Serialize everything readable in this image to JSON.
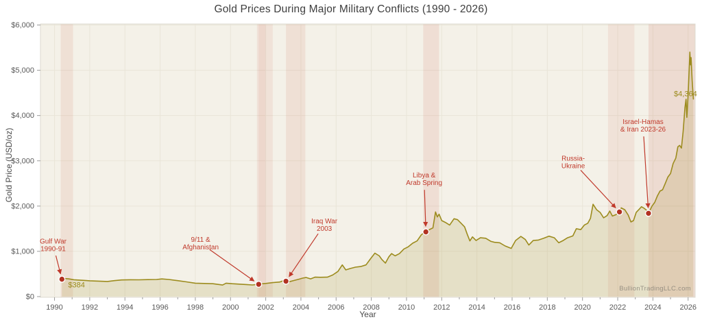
{
  "title": "Gold Prices During Major Military Conflicts (1990 - 2026)",
  "chart_data": {
    "type": "area",
    "title": "Gold Prices During Major Military Conflicts (1990 - 2026)",
    "xlabel": "Year",
    "ylabel": "Gold Price (USD/oz)",
    "watermark": "BullionTradingLLC.com",
    "x_domain": [
      1989.2,
      2026.4
    ],
    "y_domain": [
      0,
      6000
    ],
    "x_ticks": [
      1990,
      1992,
      1994,
      1996,
      1998,
      2000,
      2002,
      2004,
      2006,
      2008,
      2010,
      2012,
      2014,
      2016,
      2018,
      2020,
      2022,
      2024,
      2026
    ],
    "x_minor_ticks": [
      1991,
      1993,
      1995,
      1997,
      1999,
      2001,
      2003,
      2005,
      2007,
      2009,
      2011,
      2013,
      2015,
      2017,
      2019,
      2021,
      2023,
      2025
    ],
    "y_ticks": [
      {
        "value": 0,
        "label": "$0"
      },
      {
        "value": 1000,
        "label": "$1,000"
      },
      {
        "value": 2000,
        "label": "$2,000"
      },
      {
        "value": 3000,
        "label": "$3,000"
      },
      {
        "value": 4000,
        "label": "$4,000"
      },
      {
        "value": 5000,
        "label": "$5,000"
      },
      {
        "value": 6000,
        "label": "$6,000"
      }
    ],
    "grid": true,
    "legend": "none",
    "series": [
      {
        "name": "gold-price",
        "points": [
          [
            1990.42,
            384
          ],
          [
            1990.6,
            398
          ],
          [
            1990.8,
            392
          ],
          [
            1991.1,
            372
          ],
          [
            1991.5,
            362
          ],
          [
            1992.0,
            350
          ],
          [
            1992.5,
            342
          ],
          [
            1993.0,
            334
          ],
          [
            1993.4,
            352
          ],
          [
            1993.8,
            368
          ],
          [
            1994.3,
            372
          ],
          [
            1994.8,
            370
          ],
          [
            1995.3,
            376
          ],
          [
            1995.8,
            378
          ],
          [
            1996.1,
            390
          ],
          [
            1996.5,
            378
          ],
          [
            1997.0,
            352
          ],
          [
            1997.5,
            326
          ],
          [
            1998.0,
            296
          ],
          [
            1998.5,
            290
          ],
          [
            1999.0,
            284
          ],
          [
            1999.55,
            256
          ],
          [
            1999.75,
            296
          ],
          [
            2000.1,
            284
          ],
          [
            2000.5,
            276
          ],
          [
            2000.9,
            266
          ],
          [
            2001.25,
            258
          ],
          [
            2001.45,
            266
          ],
          [
            2001.6,
            272
          ],
          [
            2001.75,
            282
          ],
          [
            2002.0,
            290
          ],
          [
            2002.4,
            308
          ],
          [
            2002.8,
            322
          ],
          [
            2003.0,
            352
          ],
          [
            2003.15,
            340
          ],
          [
            2003.35,
            330
          ],
          [
            2003.6,
            356
          ],
          [
            2003.9,
            386
          ],
          [
            2004.1,
            408
          ],
          [
            2004.3,
            422
          ],
          [
            2004.55,
            392
          ],
          [
            2004.8,
            430
          ],
          [
            2005.1,
            426
          ],
          [
            2005.5,
            430
          ],
          [
            2005.8,
            476
          ],
          [
            2006.1,
            556
          ],
          [
            2006.35,
            700
          ],
          [
            2006.55,
            590
          ],
          [
            2006.8,
            620
          ],
          [
            2007.1,
            650
          ],
          [
            2007.4,
            664
          ],
          [
            2007.7,
            700
          ],
          [
            2007.95,
            834
          ],
          [
            2008.2,
            960
          ],
          [
            2008.45,
            900
          ],
          [
            2008.6,
            820
          ],
          [
            2008.8,
            740
          ],
          [
            2009.0,
            880
          ],
          [
            2009.15,
            950
          ],
          [
            2009.35,
            900
          ],
          [
            2009.6,
            950
          ],
          [
            2009.85,
            1050
          ],
          [
            2010.1,
            1100
          ],
          [
            2010.35,
            1180
          ],
          [
            2010.6,
            1230
          ],
          [
            2010.85,
            1370
          ],
          [
            2011.1,
            1430
          ],
          [
            2011.3,
            1480
          ],
          [
            2011.5,
            1520
          ],
          [
            2011.65,
            1870
          ],
          [
            2011.75,
            1760
          ],
          [
            2011.85,
            1820
          ],
          [
            2012.0,
            1680
          ],
          [
            2012.2,
            1640
          ],
          [
            2012.45,
            1580
          ],
          [
            2012.7,
            1720
          ],
          [
            2012.9,
            1700
          ],
          [
            2013.1,
            1620
          ],
          [
            2013.3,
            1540
          ],
          [
            2013.45,
            1380
          ],
          [
            2013.6,
            1230
          ],
          [
            2013.75,
            1320
          ],
          [
            2013.95,
            1240
          ],
          [
            2014.2,
            1300
          ],
          [
            2014.5,
            1290
          ],
          [
            2014.8,
            1220
          ],
          [
            2015.0,
            1200
          ],
          [
            2015.3,
            1190
          ],
          [
            2015.6,
            1120
          ],
          [
            2015.95,
            1065
          ],
          [
            2016.2,
            1240
          ],
          [
            2016.5,
            1330
          ],
          [
            2016.75,
            1260
          ],
          [
            2016.95,
            1140
          ],
          [
            2017.2,
            1240
          ],
          [
            2017.5,
            1250
          ],
          [
            2017.8,
            1290
          ],
          [
            2018.1,
            1335
          ],
          [
            2018.4,
            1300
          ],
          [
            2018.65,
            1190
          ],
          [
            2018.9,
            1240
          ],
          [
            2019.15,
            1300
          ],
          [
            2019.45,
            1340
          ],
          [
            2019.65,
            1500
          ],
          [
            2019.9,
            1480
          ],
          [
            2020.1,
            1580
          ],
          [
            2020.3,
            1620
          ],
          [
            2020.45,
            1730
          ],
          [
            2020.6,
            2040
          ],
          [
            2020.8,
            1920
          ],
          [
            2021.0,
            1860
          ],
          [
            2021.2,
            1740
          ],
          [
            2021.4,
            1790
          ],
          [
            2021.55,
            1890
          ],
          [
            2021.7,
            1780
          ],
          [
            2021.9,
            1810
          ],
          [
            2022.1,
            1870
          ],
          [
            2022.2,
            1960
          ],
          [
            2022.4,
            1920
          ],
          [
            2022.6,
            1800
          ],
          [
            2022.75,
            1650
          ],
          [
            2022.9,
            1680
          ],
          [
            2023.05,
            1860
          ],
          [
            2023.2,
            1920
          ],
          [
            2023.35,
            1985
          ],
          [
            2023.5,
            1950
          ],
          [
            2023.65,
            1905
          ],
          [
            2023.75,
            1840
          ],
          [
            2023.95,
            2000
          ],
          [
            2024.1,
            2080
          ],
          [
            2024.25,
            2220
          ],
          [
            2024.4,
            2330
          ],
          [
            2024.55,
            2360
          ],
          [
            2024.7,
            2500
          ],
          [
            2024.85,
            2640
          ],
          [
            2025.0,
            2720
          ],
          [
            2025.15,
            2940
          ],
          [
            2025.3,
            3060
          ],
          [
            2025.42,
            3310
          ],
          [
            2025.52,
            3340
          ],
          [
            2025.62,
            3280
          ],
          [
            2025.72,
            3650
          ],
          [
            2025.82,
            4170
          ],
          [
            2025.88,
            4360
          ],
          [
            2025.93,
            3960
          ],
          [
            2026.0,
            4450
          ],
          [
            2026.06,
            5020
          ],
          [
            2026.1,
            5400
          ],
          [
            2026.14,
            5120
          ],
          [
            2026.17,
            5280
          ],
          [
            2026.23,
            4780
          ],
          [
            2026.3,
            4364
          ]
        ]
      }
    ],
    "bands": [
      {
        "id": "gulf-war",
        "from": 1990.35,
        "to": 1991.05,
        "opacity": 0.1
      },
      {
        "id": "september-11",
        "from": 2001.5,
        "to": 2002.4,
        "opacity": 0.09
      },
      {
        "id": "afghanistan",
        "from": 2001.6,
        "to": 2001.98,
        "opacity": 0.07
      },
      {
        "id": "iraq-war",
        "from": 2003.15,
        "to": 2004.25,
        "opacity": 0.1
      },
      {
        "id": "libya-arab-spring",
        "from": 2010.95,
        "to": 2011.85,
        "opacity": 0.11
      },
      {
        "id": "russia-ukraine",
        "from": 2021.45,
        "to": 2022.95,
        "opacity": 0.09
      },
      {
        "id": "israel-hamas-iran",
        "from": 2023.75,
        "to": 2026.4,
        "opacity": 0.13
      }
    ],
    "annotations": [
      {
        "id": "gulf-war",
        "lines": [
          "Gulf War",
          "1990-91"
        ],
        "dot": [
          1990.42,
          384
        ],
        "label_at": [
          1989.92,
          1140
        ]
      },
      {
        "id": "september-11-afghanistan",
        "lines": [
          "9/11 &",
          "Afghanistan"
        ],
        "dot": [
          2001.6,
          272
        ],
        "label_at": [
          1998.3,
          1180
        ]
      },
      {
        "id": "iraq-war",
        "lines": [
          "Iraq War",
          "2003"
        ],
        "dot": [
          2003.15,
          340
        ],
        "label_at": [
          2005.33,
          1590
        ]
      },
      {
        "id": "libya-arab-spring",
        "lines": [
          "Libya &",
          "Arab Spring"
        ],
        "dot": [
          2011.1,
          1430
        ],
        "label_at": [
          2011.0,
          2600
        ]
      },
      {
        "id": "russia-ukraine",
        "lines": [
          "Russia-",
          "Ukraine"
        ],
        "dot": [
          2022.1,
          1870
        ],
        "label_at": [
          2019.47,
          2970
        ]
      },
      {
        "id": "israel-hamas-iran",
        "lines": [
          "Israel-Hamas",
          "& Iran 2023-26"
        ],
        "dot": [
          2023.75,
          1840
        ],
        "label_at": [
          2023.44,
          3780
        ]
      }
    ],
    "value_labels": [
      {
        "id": "gulf-war-price",
        "text": "$384",
        "at": [
          1991.25,
          255
        ]
      },
      {
        "id": "latest-price",
        "text": "$4,364",
        "at": [
          2025.85,
          4480
        ]
      }
    ],
    "colors": {
      "line": "#9c8b1d",
      "area": "rgba(156,139,29,0.16)",
      "band": "#c44b35",
      "dot": "#b23222",
      "dot_ring": "#ffffff",
      "annotation": "#c0392b",
      "plot_bg": "#f4f1e8",
      "grid": "#e9e5d8",
      "tick": "#9a9a9a",
      "axis_text": "#595959",
      "border": "#dcd9cf",
      "value_label": "#9c8b1d"
    }
  }
}
